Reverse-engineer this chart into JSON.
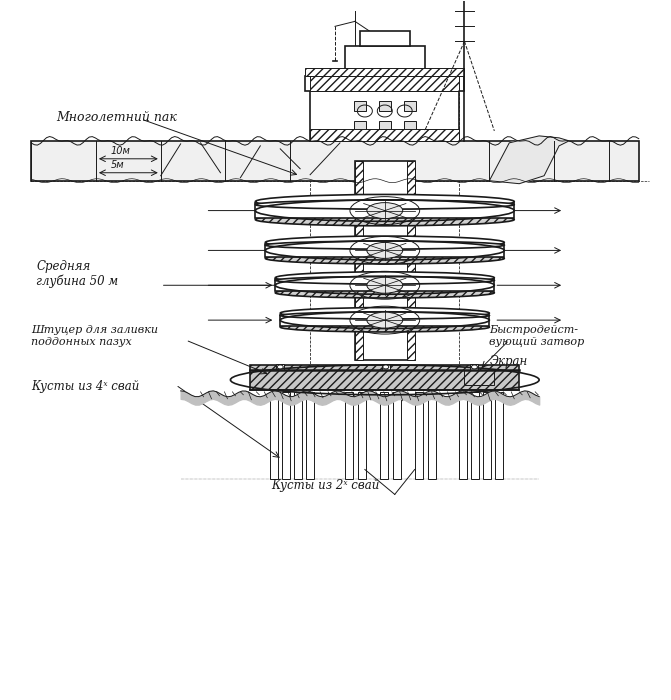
{
  "bg_color": "#ffffff",
  "line_color": "#1a1a1a",
  "hatch_color": "#333333",
  "labels": {
    "mnogoletniy_pak": "Многолетний пак",
    "srednyaya": "Средняя\nглубина 50 м",
    "shtutser": "Штуцер для заливки\nподдонных пазух",
    "kusty_4": "Кусты из 4ˣ свай",
    "kusty_2": "Кусты из 2ˣ свай",
    "bystrodeystvuyushchiy": "Быстродейст-\nвующий затвор",
    "ekran": "Экран",
    "scale_5m": "5м",
    "scale_10m": "10м"
  },
  "figsize": [
    6.71,
    7.0
  ],
  "dpi": 100
}
